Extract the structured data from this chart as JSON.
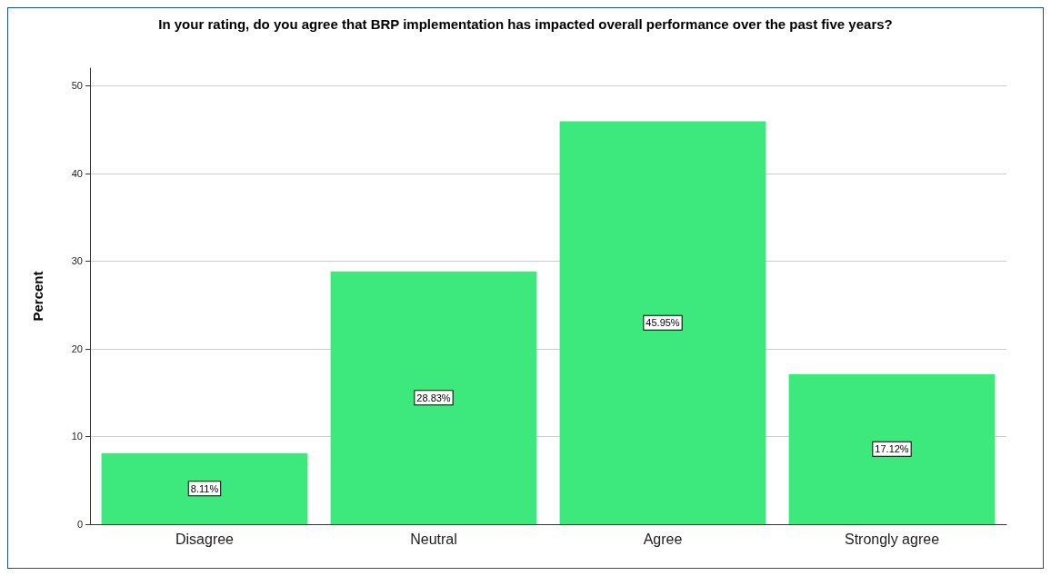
{
  "chart_data": {
    "type": "bar",
    "title": "In your rating, do you agree that BRP implementation has impacted overall performance over the past five years?",
    "ylabel": "Percent",
    "categories": [
      "Disagree",
      "Neutral",
      "Agree",
      "Strongly agree"
    ],
    "values": [
      8.11,
      28.83,
      45.95,
      17.12
    ],
    "value_labels": [
      "8.11%",
      "28.83%",
      "45.95%",
      "17.12%"
    ],
    "color": "#3de87c",
    "ylim": [
      0,
      52
    ],
    "yticks": [
      0,
      10,
      20,
      30,
      40,
      50
    ],
    "grid": "y"
  }
}
